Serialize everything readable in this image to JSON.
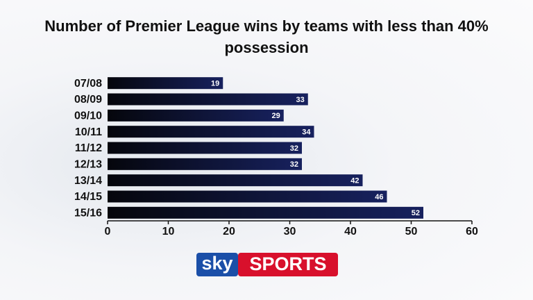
{
  "chart_data": {
    "type": "bar",
    "orientation": "horizontal",
    "title": "Number of Premier League wins by teams with less than 40% possession",
    "categories": [
      "07/08",
      "08/09",
      "09/10",
      "10/11",
      "11/12",
      "12/13",
      "13/14",
      "14/15",
      "15/16"
    ],
    "values": [
      19,
      33,
      29,
      34,
      32,
      32,
      42,
      46,
      52
    ],
    "color": "#17215e",
    "xlim": [
      0,
      60
    ],
    "xticks": [
      0,
      10,
      20,
      30,
      40,
      50,
      60
    ]
  },
  "logo": {
    "left": "sky",
    "right": "SPORTS"
  }
}
